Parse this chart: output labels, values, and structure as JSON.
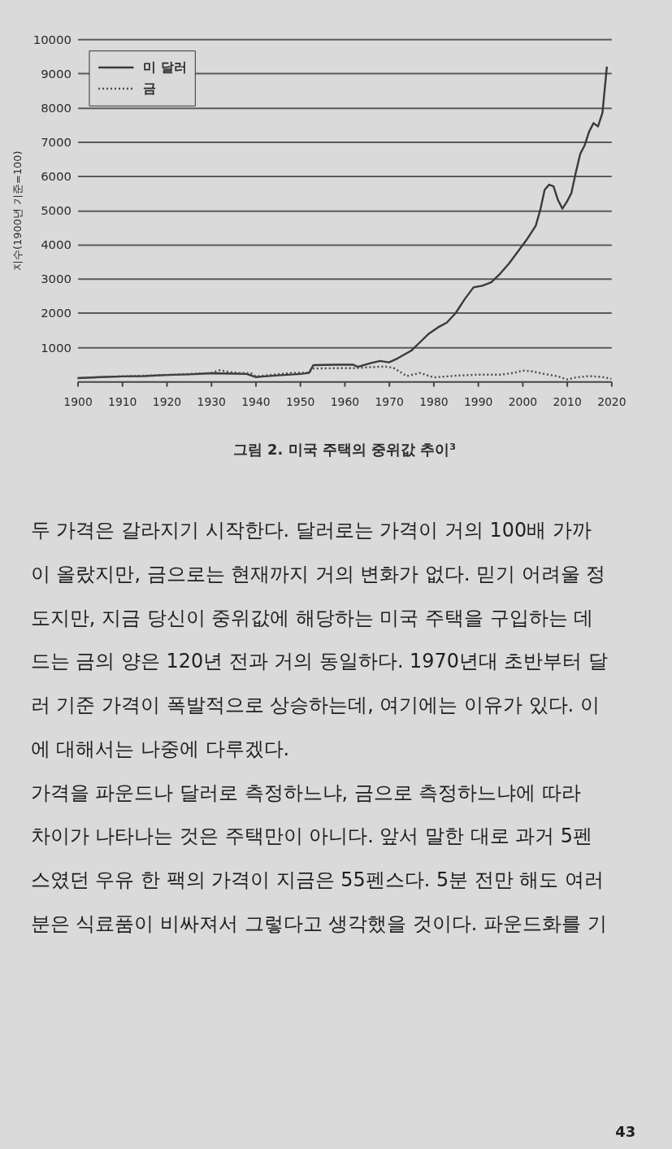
{
  "chart_data": {
    "type": "line",
    "title": "그림 2. 미국 주택의 중위값 추이³",
    "ylabel": "지수(1900년 기준=100)",
    "xlim": [
      1900,
      2020
    ],
    "xticks": [
      1900,
      1910,
      1920,
      1930,
      1940,
      1950,
      1960,
      1970,
      1980,
      1990,
      2000,
      2010,
      2020
    ],
    "ylim": [
      0,
      10000
    ],
    "yticks": [
      1000,
      2000,
      3000,
      4000,
      5000,
      6000,
      7000,
      8000,
      9000,
      10000
    ],
    "grid": "y",
    "legend": "top left",
    "series": [
      {
        "name": "미 달러",
        "color": "#3a3a3a",
        "line_style": "solid",
        "x": [
          1900,
          1905,
          1910,
          1915,
          1920,
          1925,
          1930,
          1935,
          1938,
          1940,
          1942,
          1945,
          1950,
          1952,
          1953,
          1958,
          1962,
          1963,
          1966,
          1968,
          1970,
          1972,
          1975,
          1977,
          1979,
          1981,
          1983,
          1985,
          1987,
          1989,
          1991,
          1993,
          1995,
          1997,
          1999,
          2001,
          2002,
          2003,
          2004,
          2005,
          2006,
          2007,
          2008,
          2009,
          2010,
          2011,
          2012,
          2013,
          2014,
          2015,
          2016,
          2017,
          2018,
          2019
        ],
        "values": [
          100,
          130,
          150,
          160,
          190,
          210,
          240,
          230,
          220,
          130,
          150,
          180,
          220,
          250,
          480,
          490,
          490,
          430,
          540,
          600,
          560,
          680,
          900,
          1150,
          1400,
          1580,
          1720,
          2000,
          2400,
          2750,
          2800,
          2900,
          3150,
          3450,
          3800,
          4150,
          4350,
          4550,
          5000,
          5600,
          5750,
          5700,
          5300,
          5050,
          5250,
          5500,
          6100,
          6650,
          6900,
          7300,
          7550,
          7450,
          7850,
          9200
        ]
      },
      {
        "name": "금",
        "color": "#4a4a4a",
        "line_style": "dotted",
        "x": [
          1900,
          1910,
          1920,
          1930,
          1932,
          1934,
          1936,
          1939,
          1940,
          1944,
          1948,
          1952,
          1953,
          1958,
          1962,
          1966,
          1969,
          1971,
          1974,
          1977,
          1980,
          1985,
          1990,
          1995,
          1998,
          2000,
          2002,
          2005,
          2008,
          2010,
          2012,
          2015,
          2018,
          2020
        ],
        "values": [
          100,
          150,
          190,
          250,
          330,
          280,
          250,
          240,
          150,
          200,
          250,
          260,
          380,
          390,
          390,
          420,
          440,
          400,
          160,
          250,
          120,
          170,
          200,
          200,
          250,
          320,
          300,
          220,
          150,
          60,
          120,
          160,
          130,
          80
        ]
      }
    ],
    "annotations": [
      "두 가격은 갈라지기 시작한다. 달러로는 가격이 거의 100배 가까",
      "이 올랐지만, 금으로는 현재까지 거의 변화가 없다. 믿기 어려울 정",
      "도지만, 지금 당신이 중위값에 해당하는 미국 주택을 구입하는 데",
      "드는 금의 양은 120년 전과 거의 동일하다. 1970년대 초반부터 달",
      "러 기준 가격이 폭발적으로 상승하는데, 여기에는 이유가 있다. 이",
      "에 대해서는 나중에 다루겠다.",
      "가격을 파운드나 달러로 측정하느냐, 금으로 측정하느냐에 따라",
      "차이가 나타나는 것은 주택만이 아니다. 앞서 말한 대로 과거 5펜",
      "스였던 우유 한 팩의 가격이 지금은 55펜스다. 5분 전만 해도 여러",
      "분은 식료품이 비싸져서 그렇다고 생각했을 것이다. 파운드화를 기",
      "43"
    ]
  }
}
